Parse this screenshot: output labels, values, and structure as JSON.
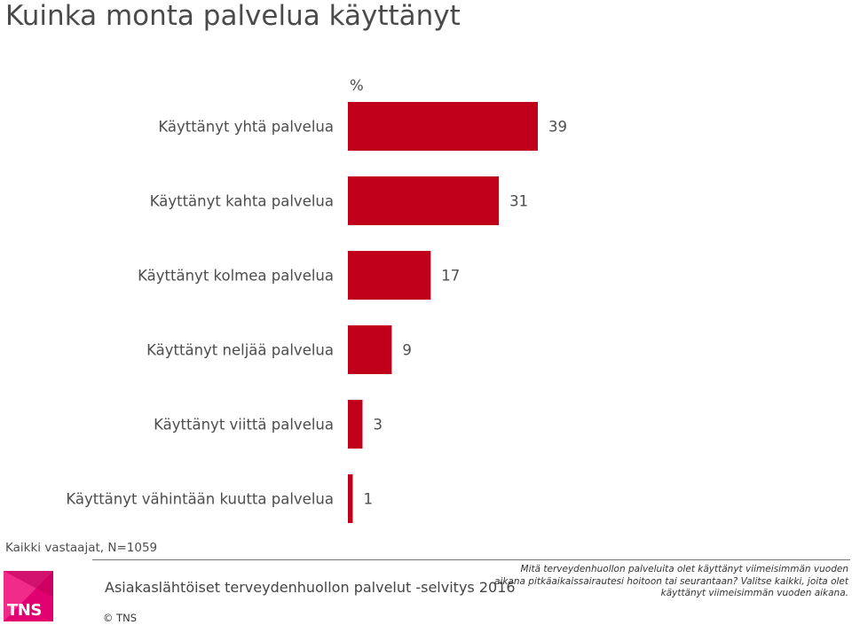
{
  "title": "Kuinka monta palvelua käyttänyt",
  "base_note": "Kaikki vastaajat, N=1059",
  "footer": {
    "logo_text": "TNS",
    "survey_name": "Asiakaslähtöiset terveydenhuollon palvelut -selvitys 2016",
    "question": "Mitä terveydenhuollon palveluita olet käyttänyt viimeisimmän vuoden aikana pitkäaikaissairautesi hoitoon tai seurantaan? Valitse kaikki, joita olet käyttänyt viimeisimmän vuoden aikana.",
    "copyright": "© TNS"
  },
  "colors": {
    "bar": "#c0001a",
    "logo": "#e0006f"
  },
  "chart_data": {
    "type": "bar",
    "orientation": "horizontal",
    "unit_label": "%",
    "categories": [
      "Käyttänyt yhtä palvelua",
      "Käyttänyt kahta palvelua",
      "Käyttänyt kolmea palvelua",
      "Käyttänyt neljää palvelua",
      "Käyttänyt viittä palvelua",
      "Käyttänyt vähintään kuutta palvelua"
    ],
    "values": [
      39,
      31,
      17,
      9,
      3,
      1
    ],
    "xlim": [
      0,
      100
    ],
    "grid": false,
    "legend": "none"
  }
}
